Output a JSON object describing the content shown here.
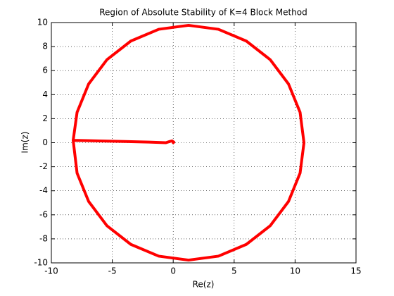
{
  "chart_data": {
    "type": "line",
    "title": "Region of Absolute Stability of K=4 Block Method",
    "x_label": "Re(z)",
    "y_label": "Im(z)",
    "x": [
      -8.21,
      -7.89,
      -6.94,
      -5.44,
      -3.48,
      -1.19,
      1.26,
      3.71,
      6.0,
      7.96,
      9.46,
      10.41,
      10.73,
      10.41,
      9.46,
      7.96,
      6.0,
      3.71,
      1.26,
      -1.19,
      -3.48,
      -5.44,
      -6.94,
      -7.89,
      -8.21,
      -6,
      -4,
      -2,
      -0.6,
      -0.3,
      -0.1,
      0.05,
      0
    ],
    "series": [
      {
        "color": "#ff0000",
        "values": [
          0.2,
          2.53,
          4.89,
          6.91,
          8.46,
          9.44,
          9.77,
          9.44,
          8.46,
          6.91,
          4.89,
          2.53,
          0,
          -2.53,
          -4.89,
          -6.91,
          -8.46,
          -9.44,
          -9.77,
          -9.44,
          -8.46,
          -6.91,
          -4.89,
          -2.53,
          0.2,
          0.15,
          0.1,
          0.05,
          0.0,
          0.1,
          0.15,
          0.05,
          0
        ]
      }
    ],
    "xlim": [
      -10,
      15
    ],
    "xticks": [
      -10,
      -5,
      0,
      5,
      10,
      15
    ],
    "ylim": [
      -10,
      10
    ],
    "yticks": [
      -10,
      -8,
      -6,
      -4,
      -2,
      0,
      2,
      4,
      6,
      8,
      10
    ],
    "grid": true
  }
}
